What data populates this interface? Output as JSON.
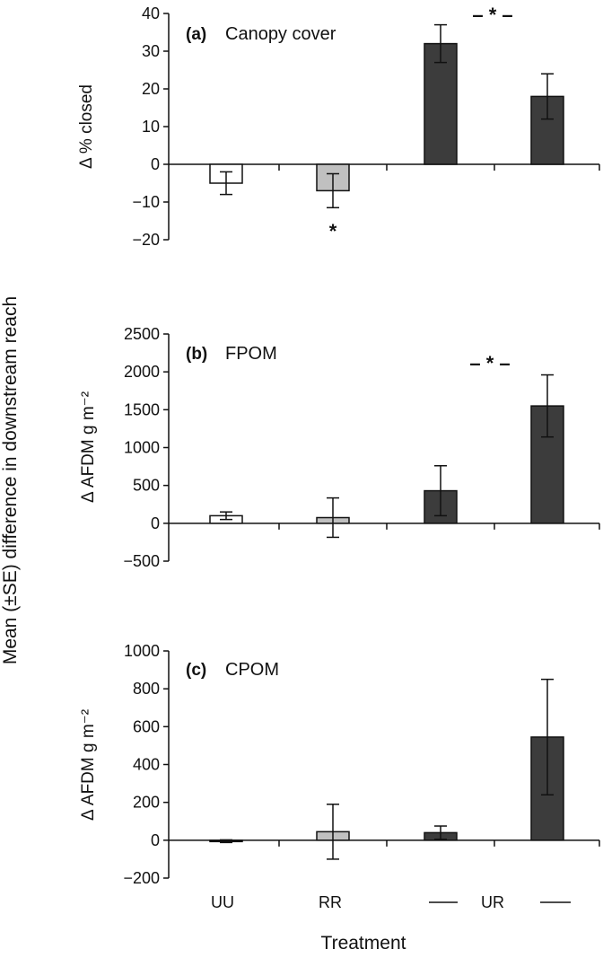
{
  "figure": {
    "shared_ylabel": "Mean (±SE) difference in downstream reach",
    "xlabel": "Treatment",
    "categories": [
      "UU",
      "RR",
      "",
      "UR"
    ],
    "colors": {
      "UU": "#ffffff",
      "RR": "#c0c0c0",
      "UR": "#3c3c3c",
      "stroke": "#000000"
    }
  },
  "chart_data": [
    {
      "type": "bar",
      "panel": "(a)",
      "title": "Canopy cover",
      "ylabel": "Δ % closed",
      "ylim": [
        -20,
        40
      ],
      "yticks": [
        -20,
        -10,
        0,
        10,
        20,
        30,
        40
      ],
      "ytick_labels": [
        "−20",
        "−10",
        "0",
        "10",
        "20",
        "30",
        "40"
      ],
      "categories": [
        "UU",
        "RR",
        "UR",
        "UR"
      ],
      "values": [
        -5,
        -7,
        32,
        18
      ],
      "se": [
        3,
        4.5,
        5,
        6
      ],
      "colors": [
        "#ffffff",
        "#c0c0c0",
        "#3c3c3c",
        "#3c3c3c"
      ],
      "annotations": [
        "*",
        "– * –"
      ]
    },
    {
      "type": "bar",
      "panel": "(b)",
      "title": "FPOM",
      "ylabel": "Δ AFDM g m⁻²",
      "ylim": [
        -500,
        2500
      ],
      "yticks": [
        -500,
        0,
        500,
        1000,
        1500,
        2000,
        2500
      ],
      "ytick_labels": [
        "−500",
        "0",
        "500",
        "1000",
        "1500",
        "2000",
        "2500"
      ],
      "categories": [
        "UU",
        "RR",
        "UR",
        "UR"
      ],
      "values": [
        100,
        75,
        430,
        1550
      ],
      "se": [
        50,
        260,
        330,
        410
      ],
      "colors": [
        "#ffffff",
        "#c0c0c0",
        "#3c3c3c",
        "#3c3c3c"
      ],
      "annotations": [
        "– * –"
      ]
    },
    {
      "type": "bar",
      "panel": "(c)",
      "title": "CPOM",
      "ylabel": "Δ AFDM g m⁻²",
      "ylim": [
        -200,
        1000
      ],
      "yticks": [
        -200,
        0,
        200,
        400,
        600,
        800,
        1000
      ],
      "ytick_labels": [
        "−200",
        "0",
        "200",
        "400",
        "600",
        "800",
        "1000"
      ],
      "categories": [
        "UU",
        "RR",
        "UR",
        "UR"
      ],
      "values": [
        -5,
        45,
        40,
        545
      ],
      "se": [
        7,
        145,
        35,
        305
      ],
      "colors": [
        "#ffffff",
        "#c0c0c0",
        "#3c3c3c",
        "#3c3c3c"
      ],
      "annotations": []
    }
  ]
}
